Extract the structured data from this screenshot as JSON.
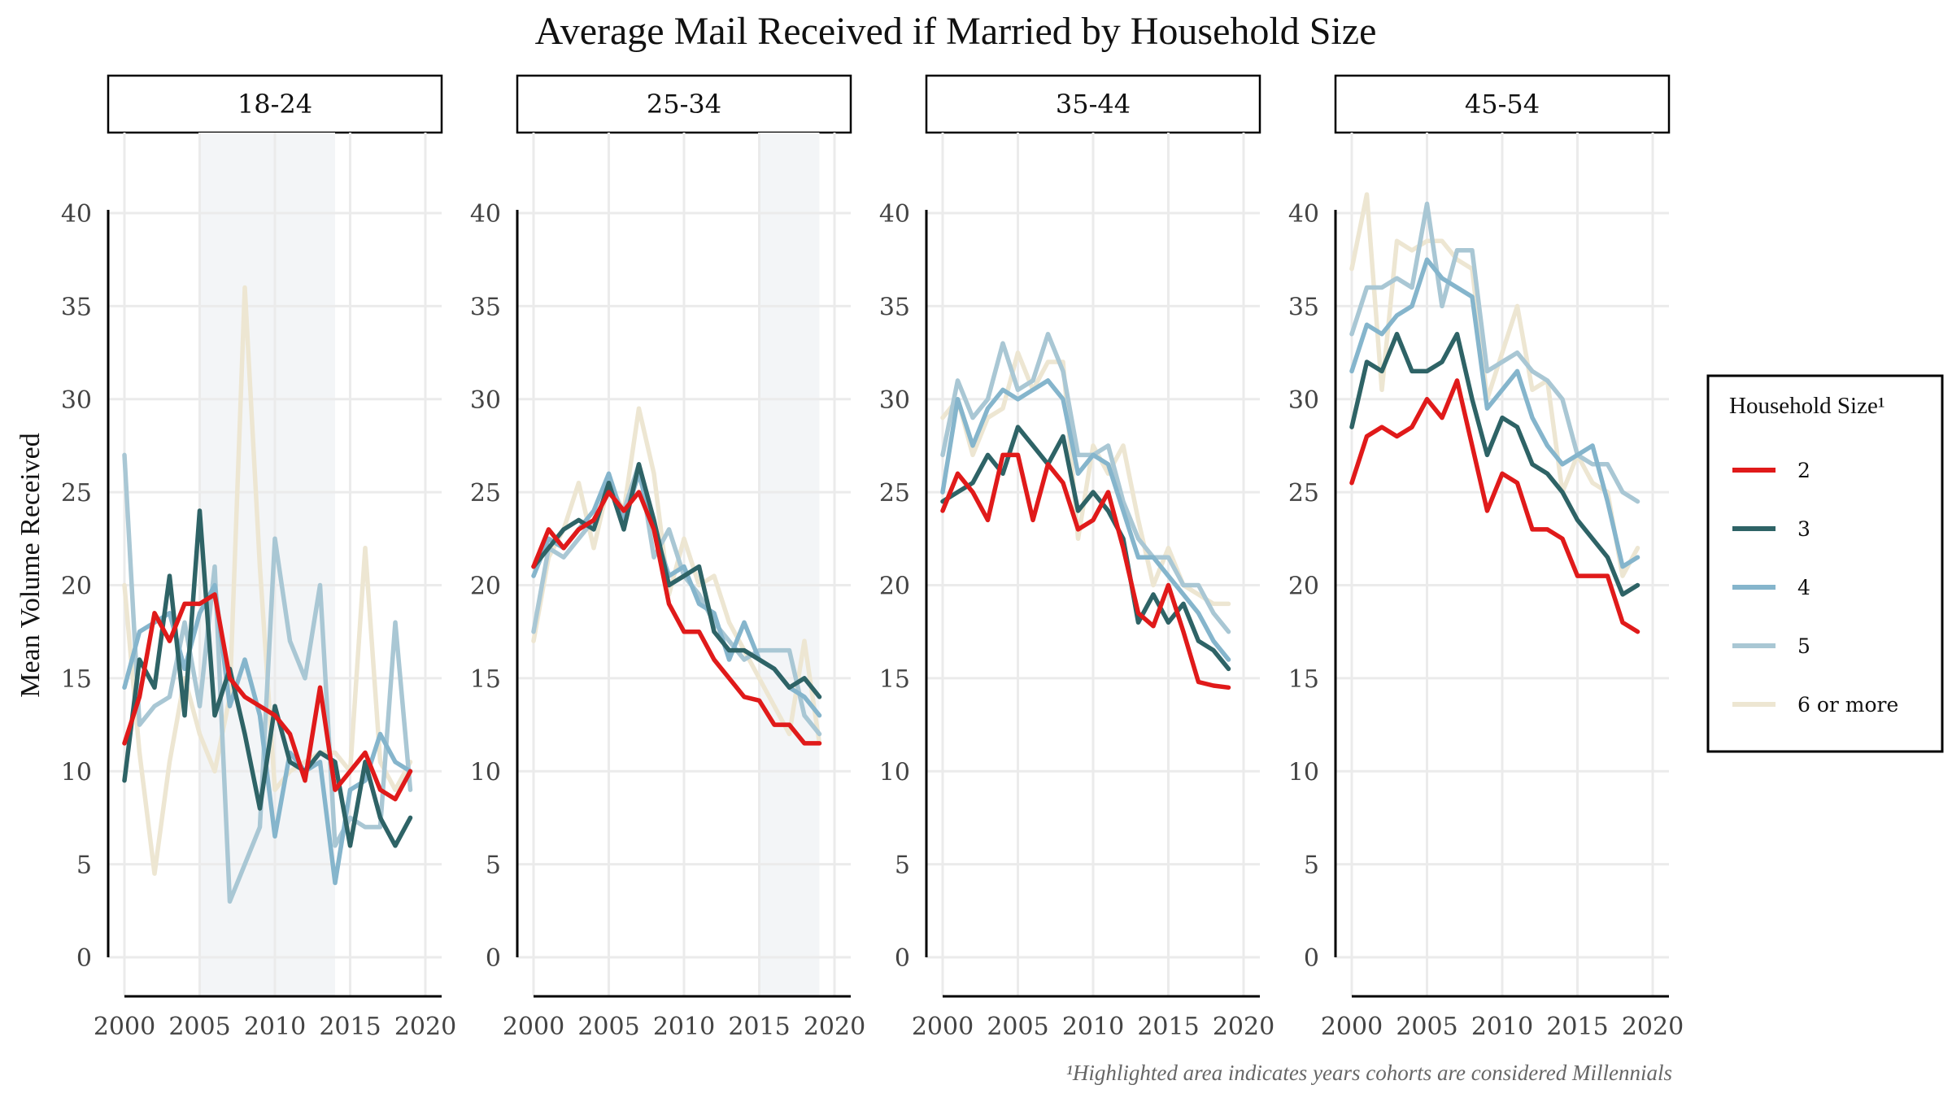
{
  "chart_data": {
    "type": "line",
    "title": "Average Mail Received if Married by Household Size",
    "ylabel": "Mean Volume Received",
    "xlabel": "",
    "xlim": [
      2000,
      2020
    ],
    "ylim": [
      0,
      40
    ],
    "x_ticks": [
      "2000",
      "2005",
      "2010",
      "2015",
      "2020"
    ],
    "y_ticks": [
      "0",
      "5",
      "10",
      "15",
      "20",
      "25",
      "30",
      "35",
      "40"
    ],
    "legend": {
      "title": "Household Size¹",
      "position": "right",
      "entries": [
        {
          "name": "2",
          "color": "#e01a1a"
        },
        {
          "name": "3",
          "color": "#2e6366"
        },
        {
          "name": "4",
          "color": "#85b5cc"
        },
        {
          "name": "5",
          "color": "#a9c7d4"
        },
        {
          "name": "6 or more",
          "color": "#ede6d2"
        }
      ]
    },
    "footnote": "¹Highlighted area indicates years cohorts are considered Millennials",
    "x": [
      2000,
      2001,
      2002,
      2003,
      2004,
      2005,
      2006,
      2007,
      2008,
      2009,
      2010,
      2011,
      2012,
      2013,
      2014,
      2015,
      2016,
      2017,
      2018,
      2019
    ],
    "panels": [
      {
        "label": "18-24",
        "highlight": [
          2005,
          2014
        ],
        "series": [
          {
            "name": "2",
            "values": [
              11.5,
              14.0,
              18.5,
              17.0,
              19.0,
              19.0,
              19.5,
              15.0,
              14.0,
              13.5,
              13.0,
              12.0,
              9.5,
              14.5,
              9.0,
              10.0,
              11.0,
              9.0,
              8.5,
              10.0
            ]
          },
          {
            "name": "3",
            "values": [
              9.5,
              16.0,
              14.5,
              20.5,
              13.0,
              24.0,
              13.0,
              15.5,
              12.0,
              8.0,
              13.5,
              10.5,
              10.0,
              11.0,
              10.5,
              6.0,
              10.5,
              7.5,
              6.0,
              7.5
            ]
          },
          {
            "name": "4",
            "values": [
              14.5,
              17.5,
              18.0,
              18.5,
              15.5,
              18.5,
              20.0,
              13.5,
              16.0,
              13.0,
              6.5,
              11.0,
              10.0,
              10.5,
              4.0,
              9.0,
              9.5,
              12.0,
              10.5,
              10.0
            ]
          },
          {
            "name": "5",
            "values": [
              27.0,
              12.5,
              13.5,
              14.0,
              18.0,
              13.5,
              21.0,
              3.0,
              5.0,
              7.0,
              22.5,
              17.0,
              15.0,
              20.0,
              6.0,
              7.5,
              7.0,
              7.0,
              18.0,
              9.0
            ]
          },
          {
            "name": "6 or more",
            "values": [
              20.0,
              11.0,
              4.5,
              10.5,
              15.0,
              12.0,
              10.0,
              14.0,
              36.0,
              21.0,
              9.0,
              10.0,
              10.5,
              11.0,
              11.0,
              10.0,
              22.0,
              10.5,
              9.0,
              10.5
            ]
          }
        ]
      },
      {
        "label": "25-34",
        "highlight": [
          2015,
          2019
        ],
        "series": [
          {
            "name": "2",
            "values": [
              21.0,
              23.0,
              22.0,
              23.0,
              23.5,
              25.0,
              24.0,
              25.0,
              23.0,
              19.0,
              17.5,
              17.5,
              16.0,
              15.0,
              14.0,
              13.8,
              12.5,
              12.5,
              11.5,
              11.5
            ]
          },
          {
            "name": "3",
            "values": [
              21.0,
              22.0,
              23.0,
              23.5,
              23.0,
              25.5,
              23.0,
              26.5,
              23.5,
              20.0,
              20.5,
              21.0,
              17.5,
              16.5,
              16.5,
              16.0,
              15.5,
              14.5,
              15.0,
              14.0
            ]
          },
          {
            "name": "4",
            "values": [
              20.5,
              22.5,
              22.0,
              23.0,
              24.0,
              26.0,
              23.5,
              26.0,
              23.0,
              20.5,
              21.0,
              19.0,
              18.5,
              16.0,
              18.0,
              16.0,
              15.5,
              14.5,
              14.0,
              13.0
            ]
          },
          {
            "name": "5",
            "values": [
              17.5,
              22.0,
              21.5,
              22.5,
              23.5,
              25.0,
              24.0,
              26.5,
              21.5,
              23.0,
              20.5,
              19.5,
              18.0,
              17.0,
              16.0,
              16.5,
              16.5,
              16.5,
              13.0,
              12.0
            ]
          },
          {
            "name": "6 or more",
            "values": [
              17.0,
              21.5,
              23.0,
              25.5,
              22.0,
              25.5,
              24.0,
              29.5,
              26.0,
              19.5,
              22.5,
              20.0,
              20.5,
              18.0,
              16.5,
              15.0,
              13.5,
              12.0,
              17.0,
              11.5
            ]
          }
        ]
      },
      {
        "label": "35-44",
        "highlight": null,
        "series": [
          {
            "name": "2",
            "values": [
              24.0,
              26.0,
              25.0,
              23.5,
              27.0,
              27.0,
              23.5,
              26.5,
              25.5,
              23.0,
              23.5,
              25.0,
              22.0,
              18.5,
              17.8,
              20.0,
              17.5,
              14.8,
              14.6,
              14.5
            ]
          },
          {
            "name": "3",
            "values": [
              24.5,
              25.0,
              25.5,
              27.0,
              26.0,
              28.5,
              27.5,
              26.5,
              28.0,
              24.0,
              25.0,
              24.0,
              22.5,
              18.0,
              19.5,
              18.0,
              19.0,
              17.0,
              16.5,
              15.5
            ]
          },
          {
            "name": "4",
            "values": [
              25.0,
              30.0,
              27.5,
              29.5,
              30.5,
              30.0,
              30.5,
              31.0,
              30.0,
              26.0,
              27.0,
              26.5,
              24.0,
              21.5,
              21.5,
              20.5,
              19.5,
              18.5,
              17.0,
              16.0
            ]
          },
          {
            "name": "5",
            "values": [
              27.0,
              31.0,
              29.0,
              30.0,
              33.0,
              30.5,
              31.0,
              33.5,
              31.5,
              27.0,
              27.0,
              27.5,
              24.5,
              22.5,
              21.5,
              21.5,
              20.0,
              20.0,
              18.5,
              17.5
            ]
          },
          {
            "name": "6 or more",
            "values": [
              29.0,
              30.0,
              27.0,
              29.0,
              29.5,
              32.5,
              30.5,
              32.0,
              32.0,
              22.5,
              27.5,
              26.0,
              27.5,
              23.5,
              20.0,
              22.0,
              20.0,
              19.5,
              19.0,
              19.0
            ]
          }
        ]
      },
      {
        "label": "45-54",
        "highlight": null,
        "series": [
          {
            "name": "2",
            "values": [
              25.5,
              28.0,
              28.5,
              28.0,
              28.5,
              30.0,
              29.0,
              31.0,
              27.5,
              24.0,
              26.0,
              25.5,
              23.0,
              23.0,
              22.5,
              20.5,
              20.5,
              20.5,
              18.0,
              17.5
            ]
          },
          {
            "name": "3",
            "values": [
              28.5,
              32.0,
              31.5,
              33.5,
              31.5,
              31.5,
              32.0,
              33.5,
              30.0,
              27.0,
              29.0,
              28.5,
              26.5,
              26.0,
              25.0,
              23.5,
              22.5,
              21.5,
              19.5,
              20.0
            ]
          },
          {
            "name": "4",
            "values": [
              31.5,
              34.0,
              33.5,
              34.5,
              35.0,
              37.5,
              36.5,
              36.0,
              35.5,
              29.5,
              30.5,
              31.5,
              29.0,
              27.5,
              26.5,
              27.0,
              27.5,
              24.5,
              21.0,
              21.5
            ]
          },
          {
            "name": "5",
            "values": [
              33.5,
              36.0,
              36.0,
              36.5,
              36.0,
              40.5,
              35.0,
              38.0,
              38.0,
              31.5,
              32.0,
              32.5,
              31.5,
              31.0,
              30.0,
              27.0,
              26.5,
              26.5,
              25.0,
              24.5
            ]
          },
          {
            "name": "6 or more",
            "values": [
              37.0,
              41.0,
              30.5,
              38.5,
              38.0,
              38.5,
              38.5,
              37.5,
              37.0,
              30.0,
              32.5,
              35.0,
              30.5,
              31.0,
              25.0,
              27.0,
              25.5,
              25.0,
              20.5,
              22.0
            ]
          }
        ]
      }
    ]
  }
}
